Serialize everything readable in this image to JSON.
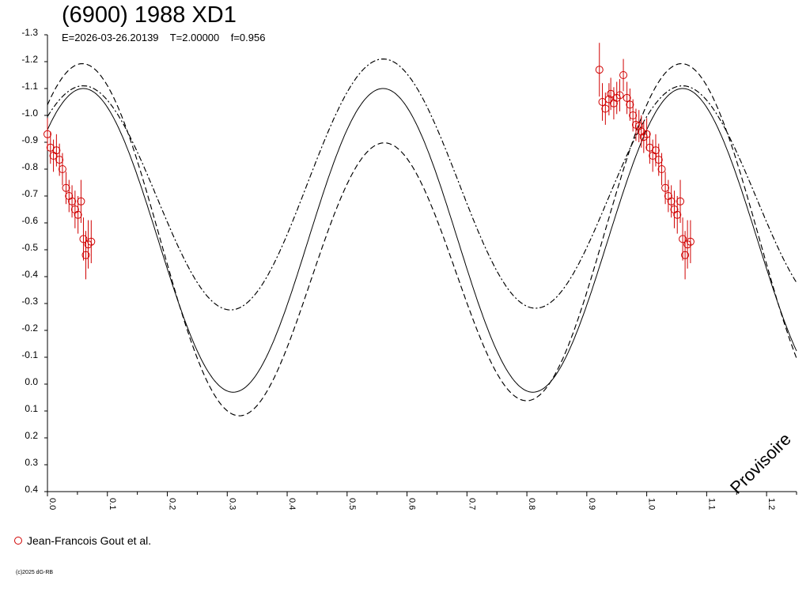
{
  "header": {
    "title": "(6900) 1988 XD1",
    "subtitle": "E=2026-03-26.20139    T=2.00000    f=0.956"
  },
  "legend": {
    "entries": [
      {
        "label": "Jean-Francois Gout et al.",
        "color": "#d00000",
        "marker": "circle"
      }
    ]
  },
  "footer": {
    "copyright": "(c)2025 dG-RB"
  },
  "watermark": "Provisoire",
  "chart_data": {
    "type": "scatter",
    "xlim": [
      0.0,
      1.25
    ],
    "ylim": [
      -1.3,
      0.4
    ],
    "y_inverted": true,
    "x_ticks": [
      "0.0",
      "0.1",
      "0.2",
      "0.3",
      "0.4",
      "0.5",
      "0.6",
      "0.7",
      "0.8",
      "0.9",
      "1.0",
      "1.1",
      "1.2"
    ],
    "y_ticks": [
      "-1.3",
      "-1.2",
      "-1.1",
      "-1.0",
      "-0.9",
      "-0.8",
      "-0.7",
      "-0.6",
      "-0.5",
      "-0.4",
      "-0.3",
      "-0.2",
      "-0.1",
      "0.0",
      "0.1",
      "0.2",
      "0.3",
      "0.4"
    ],
    "colors": {
      "points": "#d00000",
      "curves": "#000000"
    },
    "series": [
      {
        "name": "Jean-Francois Gout et al.",
        "points": [
          {
            "x": 0.921,
            "y": -1.17,
            "err": 0.1
          },
          {
            "x": 0.926,
            "y": -1.05,
            "err": 0.07
          },
          {
            "x": 0.931,
            "y": -1.025,
            "err": 0.06
          },
          {
            "x": 0.937,
            "y": -1.06,
            "err": 0.06
          },
          {
            "x": 0.94,
            "y": -1.08,
            "err": 0.06
          },
          {
            "x": 0.945,
            "y": -1.045,
            "err": 0.06
          },
          {
            "x": 0.95,
            "y": -1.065,
            "err": 0.06
          },
          {
            "x": 0.955,
            "y": -1.075,
            "err": 0.06
          },
          {
            "x": 0.961,
            "y": -1.15,
            "err": 0.06
          },
          {
            "x": 0.967,
            "y": -1.065,
            "err": 0.06
          },
          {
            "x": 0.972,
            "y": -1.04,
            "err": 0.06
          },
          {
            "x": 0.977,
            "y": -1.0,
            "err": 0.06
          },
          {
            "x": 0.982,
            "y": -0.965,
            "err": 0.06
          },
          {
            "x": 0.987,
            "y": -0.96,
            "err": 0.06
          },
          {
            "x": 0.991,
            "y": -0.94,
            "err": 0.06
          },
          {
            "x": 0.995,
            "y": -0.92,
            "err": 0.06
          },
          {
            "x": 1.0,
            "y": -0.93,
            "err": 0.06
          },
          {
            "x": 1.005,
            "y": -0.88,
            "err": 0.06
          },
          {
            "x": 1.01,
            "y": -0.85,
            "err": 0.06
          },
          {
            "x": 1.015,
            "y": -0.87,
            "err": 0.06
          },
          {
            "x": 1.02,
            "y": -0.835,
            "err": 0.06
          },
          {
            "x": 1.025,
            "y": -0.8,
            "err": 0.06
          },
          {
            "x": 1.031,
            "y": -0.73,
            "err": 0.06
          },
          {
            "x": 1.036,
            "y": -0.7,
            "err": 0.06
          },
          {
            "x": 1.041,
            "y": -0.68,
            "err": 0.06
          },
          {
            "x": 1.046,
            "y": -0.65,
            "err": 0.07
          },
          {
            "x": 1.051,
            "y": -0.63,
            "err": 0.07
          },
          {
            "x": 1.056,
            "y": -0.68,
            "err": 0.08
          },
          {
            "x": 1.06,
            "y": -0.54,
            "err": 0.08
          },
          {
            "x": 1.064,
            "y": -0.48,
            "err": 0.09
          },
          {
            "x": 1.068,
            "y": -0.52,
            "err": 0.09
          },
          {
            "x": 1.073,
            "y": -0.53,
            "err": 0.08
          }
        ]
      }
    ],
    "curves": [
      {
        "style": "solid",
        "mean": -0.535,
        "amp1": -0.565,
        "center1": 1.06,
        "amp2": 0.0
      },
      {
        "style": "dashed",
        "mean": -0.48,
        "amp1": -0.565,
        "center1": 1.06,
        "amp2": -0.15,
        "center2": 0.03
      },
      {
        "style": "dashdot",
        "mean": -0.72,
        "amp1": -0.44,
        "center1": 1.06,
        "amp2": 0.05,
        "center2": 0.07
      },
      {
        "style": "dashed",
        "mean": -0.48,
        "amp1": -0.565,
        "center1": 1.06,
        "amp2": -0.15,
        "center2": 0.03
      },
      {
        "style": "dashdot",
        "mean": -0.72,
        "amp1": -0.44,
        "center1": 1.06,
        "amp2": 0.05,
        "center2": 0.07
      }
    ]
  }
}
